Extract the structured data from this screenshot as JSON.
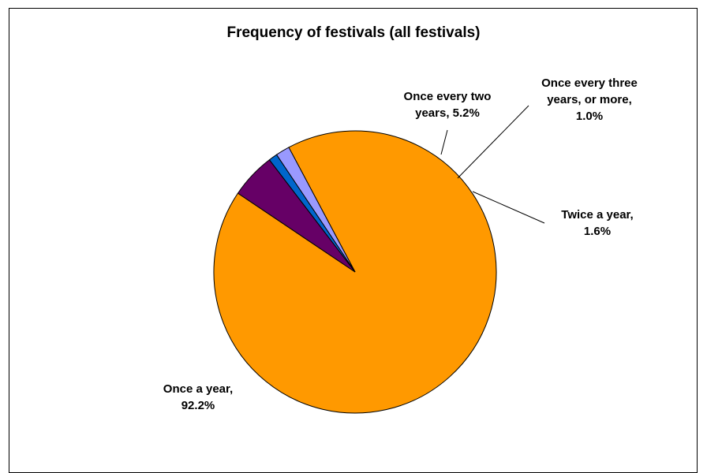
{
  "chart_data": {
    "type": "pie",
    "title": "Frequency of festivals (all festivals)",
    "slices": [
      {
        "label_lines": [
          "Once a year,",
          "92.2%"
        ],
        "value": 92.2,
        "color": "#FF9900"
      },
      {
        "label_lines": [
          "Once every two",
          "years, 5.2%"
        ],
        "value": 5.2,
        "color": "#660066"
      },
      {
        "label_lines": [
          "Once every three",
          "years, or more,",
          "1.0%"
        ],
        "value": 1.0,
        "color": "#0066CC"
      },
      {
        "label_lines": [
          "Twice a year,",
          "1.6%"
        ],
        "value": 1.6,
        "color": "#9999FF"
      }
    ],
    "legend": "none"
  }
}
